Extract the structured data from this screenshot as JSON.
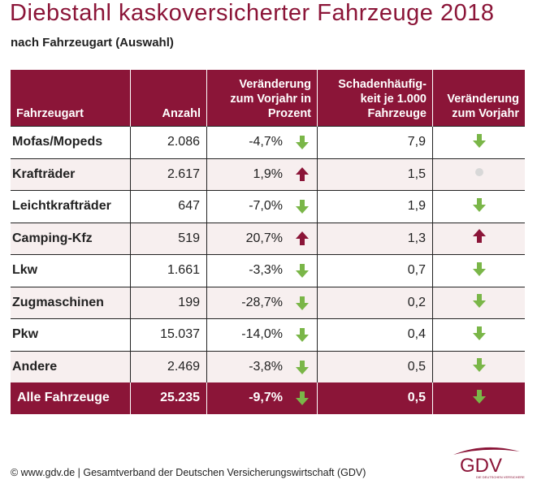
{
  "title": "Diebstahl kaskoversicherter Fahrzeuge 2018",
  "subtitle": "nach Fahrzeugart (Auswahl)",
  "colors": {
    "brand": "#8b1538",
    "down": "#7ab648",
    "up": "#8b1538",
    "neutral": "#d8d8d8"
  },
  "table": {
    "headers": [
      "Fahrzeugart",
      "Anzahl",
      "Veränderung zum Vorjahr in Prozent",
      "Schadenhäufig-keit je 1.000 Fahrzeuge",
      "Veränderung zum Vorjahr"
    ],
    "rows": [
      {
        "type": "Mofas/Mopeds",
        "count": "2.086",
        "change": "-4,7%",
        "change_trend": "down",
        "frequency": "7,9",
        "frequency_trend": "down"
      },
      {
        "type": "Krafträder",
        "count": "2.617",
        "change": "1,9%",
        "change_trend": "up",
        "frequency": "1,5",
        "frequency_trend": "neutral"
      },
      {
        "type": "Leichtkrafträder",
        "count": "647",
        "change": "-7,0%",
        "change_trend": "down",
        "frequency": "1,9",
        "frequency_trend": "down"
      },
      {
        "type": "Camping-Kfz",
        "count": "519",
        "change": "20,7%",
        "change_trend": "up",
        "frequency": "1,3",
        "frequency_trend": "up"
      },
      {
        "type": "Lkw",
        "count": "1.661",
        "change": "-3,3%",
        "change_trend": "down",
        "frequency": "0,7",
        "frequency_trend": "down"
      },
      {
        "type": "Zugmaschinen",
        "count": "199",
        "change": "-28,7%",
        "change_trend": "down",
        "frequency": "0,2",
        "frequency_trend": "down"
      },
      {
        "type": "Pkw",
        "count": "15.037",
        "change": "-14,0%",
        "change_trend": "down",
        "frequency": "0,4",
        "frequency_trend": "down"
      },
      {
        "type": "Andere",
        "count": "2.469",
        "change": "-3,8%",
        "change_trend": "down",
        "frequency": "0,5",
        "frequency_trend": "down"
      }
    ],
    "total": {
      "type": "Alle Fahrzeuge",
      "count": "25.235",
      "change": "-9,7%",
      "change_trend": "down",
      "frequency": "0,5",
      "frequency_trend": "down"
    }
  },
  "footer": "© www.gdv.de | Gesamtverband der Deutschen Versicherungswirtschaft (GDV)",
  "logo": {
    "text": "GDV",
    "tagline": "DIE DEUTSCHEN VERSICHERER"
  }
}
